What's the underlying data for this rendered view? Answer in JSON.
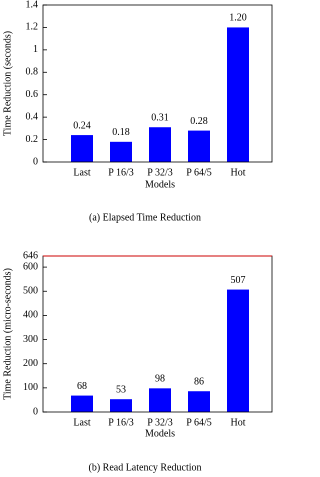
{
  "chart_data": [
    {
      "type": "bar",
      "caption": "(a) Elapsed Time Reduction",
      "x_label": "Models",
      "y_label": "Time Reduction (seconds)",
      "categories": [
        "Last",
        "P 16/3",
        "P 32/3",
        "P 64/5",
        "Hot"
      ],
      "values": [
        0.24,
        0.18,
        0.31,
        0.28,
        1.2
      ],
      "value_labels": [
        "0.24",
        "0.18",
        "0.31",
        "0.28",
        "1.20"
      ],
      "color": "#0000ff",
      "ylim": [
        0,
        1.4
      ],
      "yticks": [
        0,
        0.2,
        0.4,
        0.6,
        0.8,
        1,
        1.2,
        1.4
      ]
    },
    {
      "type": "bar",
      "caption": "(b) Read Latency Reduction",
      "x_label": "Models",
      "y_label": "Time Reduction (micro-seconds)",
      "categories": [
        "Last",
        "P 16/3",
        "P 32/3",
        "P 64/5",
        "Hot"
      ],
      "values": [
        68,
        53,
        98,
        86,
        507
      ],
      "color": "#0000ff",
      "ylim": [
        0,
        646
      ],
      "yticks": [
        0,
        100,
        200,
        300,
        400,
        500,
        600,
        646
      ],
      "top_line_color": "#cc0000"
    }
  ]
}
